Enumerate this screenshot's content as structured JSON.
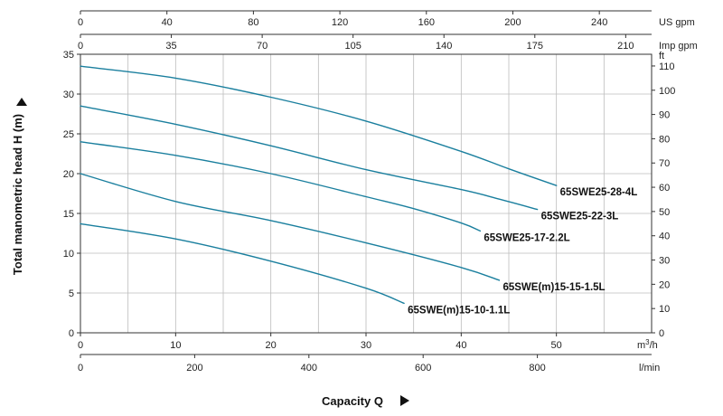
{
  "chart_data": {
    "type": "line",
    "title": "",
    "xlabel": "Capacity Q",
    "ylabel": "Total manometric head H (m)",
    "xlim": [
      0,
      60
    ],
    "ylim": [
      0,
      35
    ],
    "grid": true,
    "legend": "labels at curve ends",
    "line_color": "#1a7f9e",
    "x_primary": {
      "unit": "m³/h",
      "unit_base": "m",
      "unit_sup": "3",
      "unit_tail": "/h",
      "ticks": [
        0,
        10,
        20,
        30,
        40,
        50
      ]
    },
    "x_lmin": {
      "unit": "l/min",
      "ticks": [
        0,
        200,
        400,
        600,
        800
      ],
      "per_m3h": 16.6667
    },
    "x_usgpm": {
      "unit": "US gpm",
      "ticks": [
        0,
        40,
        80,
        120,
        160,
        200,
        240
      ],
      "per_m3h": 4.4029
    },
    "x_impgpm": {
      "unit": "Imp gpm",
      "ticks": [
        0,
        35,
        70,
        105,
        140,
        175,
        210
      ],
      "per_m3h": 3.6662
    },
    "y_primary": {
      "ticks": [
        0,
        5,
        10,
        15,
        20,
        25,
        30,
        35
      ]
    },
    "y_ft": {
      "unit": "ft",
      "ticks": [
        0,
        10,
        20,
        30,
        40,
        50,
        60,
        70,
        80,
        90,
        100,
        110
      ],
      "per_m": 3.2808
    },
    "series": [
      {
        "name": "65SWE25-28-4L",
        "x": [
          0,
          10,
          20,
          30,
          40,
          45,
          50
        ],
        "y": [
          33.5,
          32.0,
          29.6,
          26.6,
          22.8,
          20.6,
          18.5
        ]
      },
      {
        "name": "65SWE25-22-3L",
        "x": [
          0,
          10,
          20,
          30,
          40,
          44,
          48
        ],
        "y": [
          28.5,
          26.2,
          23.5,
          20.5,
          18.0,
          16.8,
          15.5
        ]
      },
      {
        "name": "65SWE25-17-2.2L",
        "x": [
          0,
          10,
          20,
          30,
          35,
          40,
          42
        ],
        "y": [
          24.0,
          22.3,
          20.0,
          17.1,
          15.6,
          13.8,
          12.8
        ]
      },
      {
        "name": "65SWE(m)15-15-1.5L",
        "x": [
          0,
          10,
          20,
          30,
          40,
          44
        ],
        "y": [
          20.0,
          16.5,
          14.1,
          11.3,
          8.2,
          6.6
        ]
      },
      {
        "name": "65SWE(m)15-10-1.1L",
        "x": [
          0,
          10,
          20,
          30,
          34
        ],
        "y": [
          13.7,
          11.8,
          9.0,
          5.6,
          3.7
        ]
      }
    ]
  }
}
